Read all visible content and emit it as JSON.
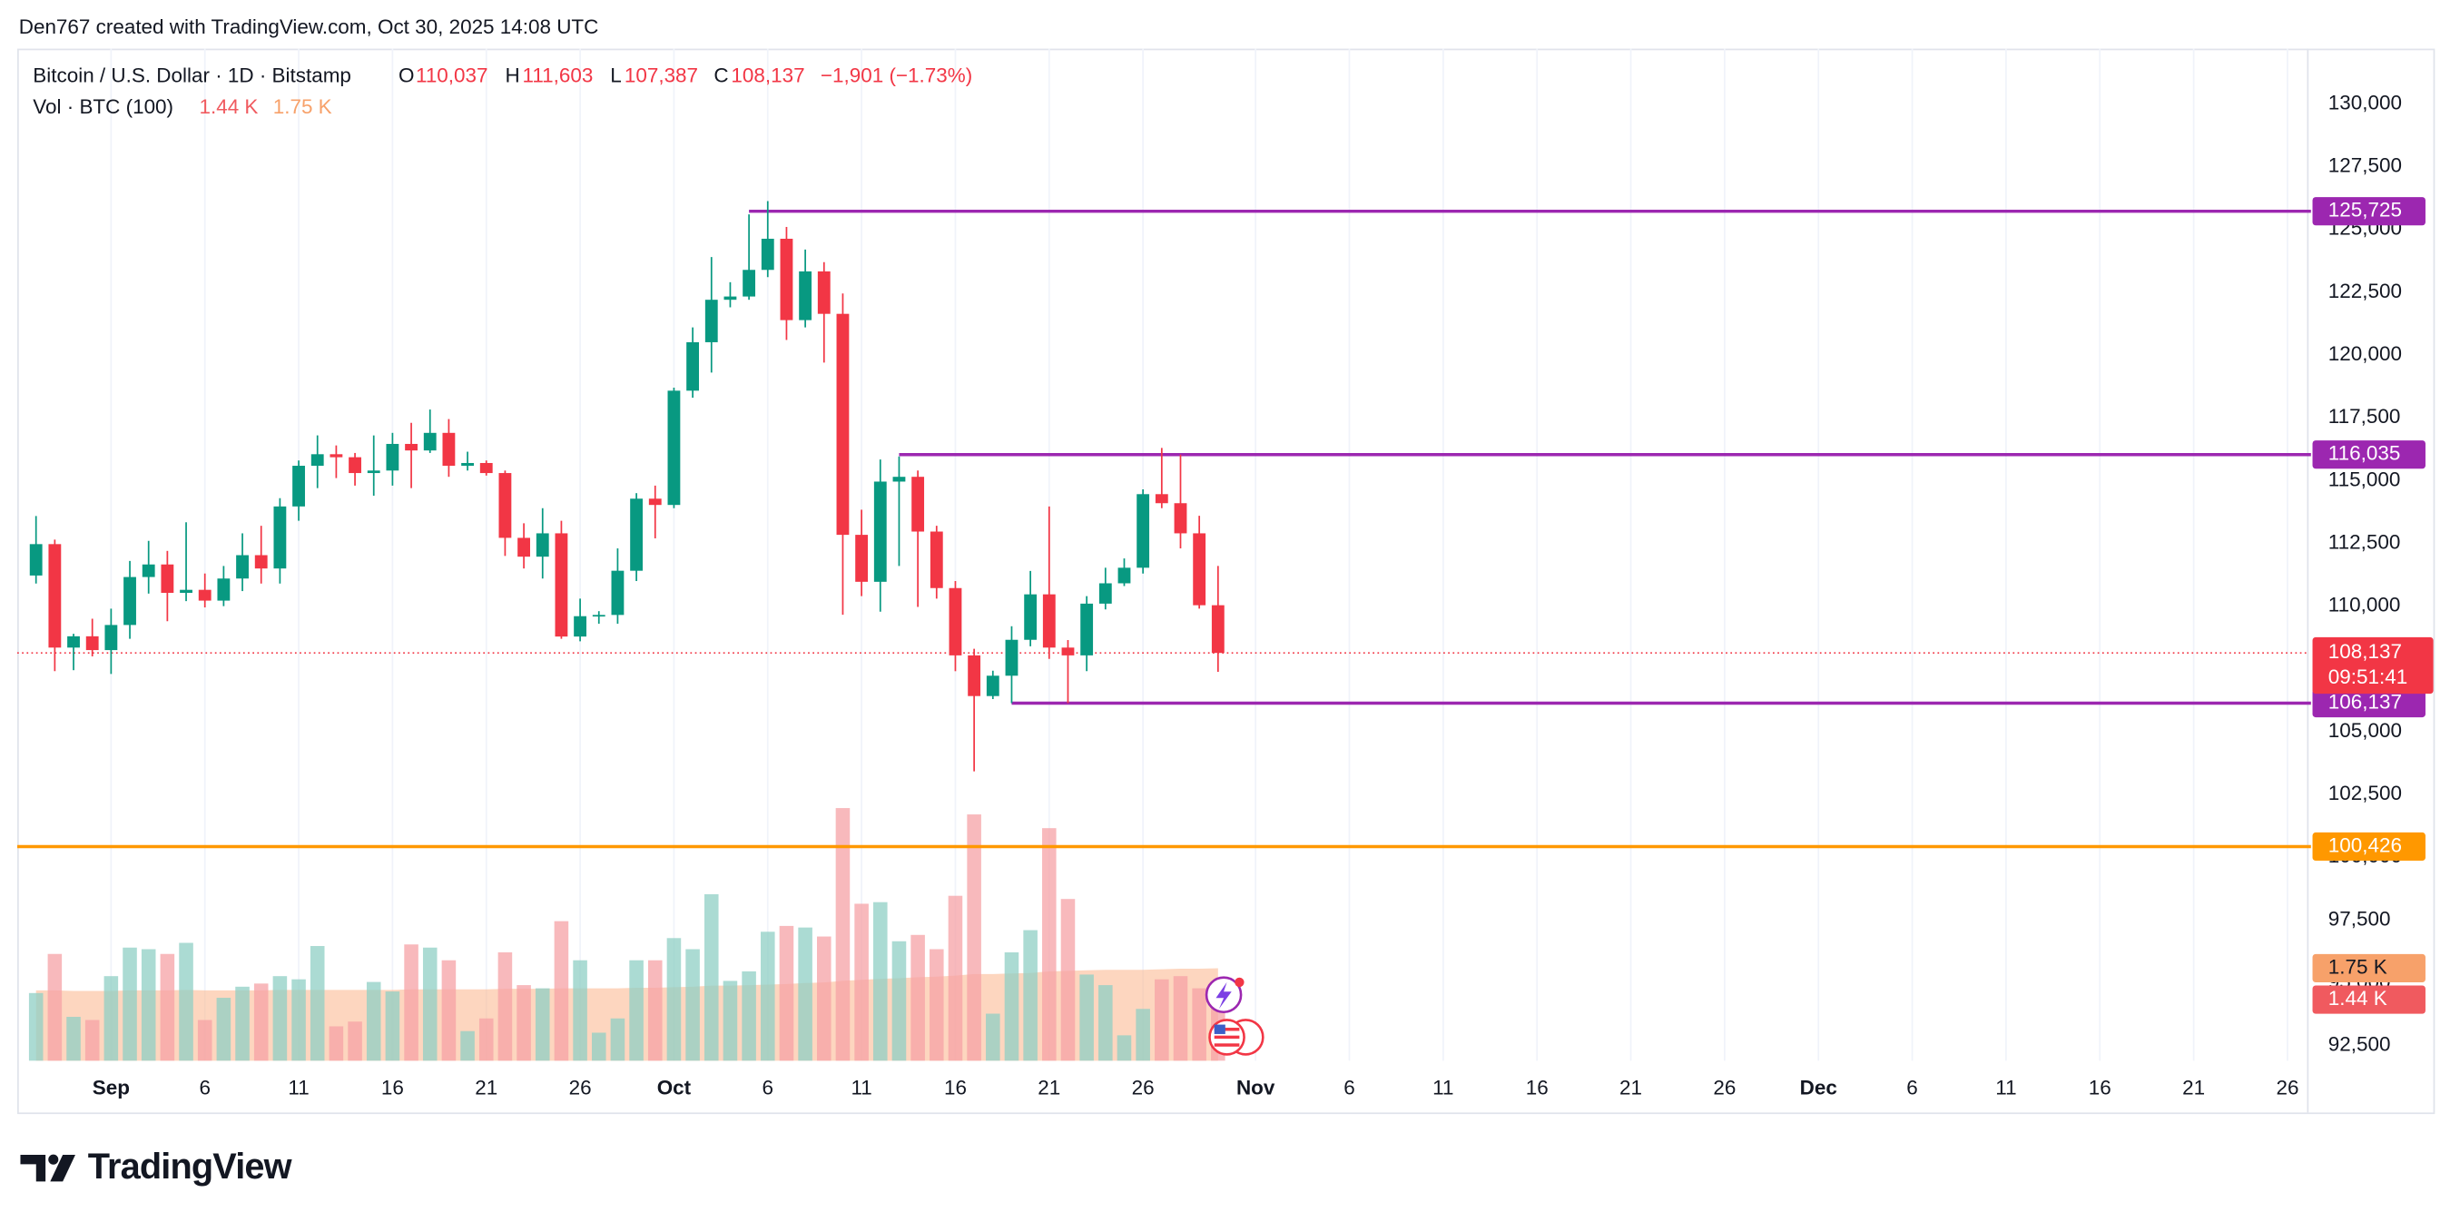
{
  "header": {
    "credit": "Den767 created with TradingView.com, Oct 30, 2025 14:08 UTC",
    "symbol": "Bitcoin / U.S. Dollar · 1D · Bitstamp",
    "ohlc": [
      {
        "key": "O",
        "value": "110,037"
      },
      {
        "key": "H",
        "value": "111,603"
      },
      {
        "key": "L",
        "value": "107,387"
      },
      {
        "key": "C",
        "value": "108,137"
      }
    ],
    "change": "−1,901 (−1.73%)",
    "volume_legend": "Vol · BTC (100)"
  },
  "chart_data": {
    "type": "candlestick",
    "x": [
      "2025-08-28",
      "2025-08-29",
      "2025-08-30",
      "2025-08-31",
      "2025-09-01",
      "2025-09-02",
      "2025-09-03",
      "2025-09-04",
      "2025-09-05",
      "2025-09-06",
      "2025-09-07",
      "2025-09-08",
      "2025-09-09",
      "2025-09-10",
      "2025-09-11",
      "2025-09-12",
      "2025-09-13",
      "2025-09-14",
      "2025-09-15",
      "2025-09-16",
      "2025-09-17",
      "2025-09-18",
      "2025-09-19",
      "2025-09-20",
      "2025-09-21",
      "2025-09-22",
      "2025-09-23",
      "2025-09-24",
      "2025-09-25",
      "2025-09-26",
      "2025-09-27",
      "2025-09-28",
      "2025-09-29",
      "2025-09-30",
      "2025-10-01",
      "2025-10-02",
      "2025-10-03",
      "2025-10-04",
      "2025-10-05",
      "2025-10-06",
      "2025-10-07",
      "2025-10-08",
      "2025-10-09",
      "2025-10-10",
      "2025-10-11",
      "2025-10-12",
      "2025-10-13",
      "2025-10-14",
      "2025-10-15",
      "2025-10-16",
      "2025-10-17",
      "2025-10-18",
      "2025-10-19",
      "2025-10-20",
      "2025-10-21",
      "2025-10-22",
      "2025-10-23",
      "2025-10-24",
      "2025-10-25",
      "2025-10-26",
      "2025-10-27",
      "2025-10-28",
      "2025-10-29",
      "2025-10-30"
    ],
    "open": [
      111220,
      112470,
      108350,
      108800,
      108250,
      109250,
      111160,
      111660,
      110530,
      110650,
      110220,
      111100,
      112030,
      111500,
      113970,
      115590,
      116050,
      115930,
      115300,
      115400,
      116460,
      116200,
      116900,
      115590,
      115700,
      115300,
      112720,
      111970,
      112900,
      108790,
      109600,
      109650,
      111410,
      114280,
      114030,
      118580,
      120510,
      122200,
      122330,
      123390,
      124630,
      121390,
      123330,
      121640,
      112840,
      110970,
      114960,
      115150,
      112970,
      110720,
      108040,
      106420,
      107230,
      108660,
      110470,
      108350,
      108040,
      110100,
      110910,
      111530,
      114460,
      114100,
      112900,
      110037
    ],
    "high": [
      113590,
      112650,
      108900,
      109500,
      109900,
      111800,
      112600,
      112200,
      113340,
      111300,
      111600,
      112900,
      113200,
      114300,
      115800,
      116800,
      116400,
      116100,
      116800,
      116900,
      117300,
      117830,
      117450,
      116150,
      115800,
      115400,
      113300,
      113900,
      113400,
      110300,
      109800,
      112300,
      114500,
      114800,
      118700,
      121100,
      123900,
      122900,
      125600,
      126130,
      125100,
      124200,
      123700,
      122450,
      113840,
      115840,
      115960,
      115400,
      113200,
      111000,
      108300,
      107430,
      109200,
      111400,
      113970,
      108650,
      110400,
      111530,
      111900,
      114650,
      116300,
      116035,
      113600,
      111603
    ],
    "low": [
      110900,
      107410,
      107450,
      108000,
      107300,
      108700,
      110500,
      109400,
      110200,
      109950,
      110000,
      110600,
      110900,
      110900,
      113400,
      114700,
      115100,
      114800,
      114400,
      114800,
      114700,
      116100,
      115150,
      115400,
      115200,
      112000,
      111500,
      111100,
      108700,
      108600,
      109300,
      109300,
      111000,
      112700,
      113900,
      118300,
      119300,
      121900,
      122200,
      123100,
      120600,
      121100,
      119700,
      109660,
      110400,
      109780,
      111600,
      109970,
      110300,
      107410,
      103420,
      106300,
      106137,
      108400,
      107900,
      106137,
      107410,
      109870,
      110800,
      111300,
      113900,
      112300,
      109900,
      107387
    ],
    "close": [
      112470,
      108350,
      108800,
      108250,
      109250,
      111160,
      111660,
      110530,
      110650,
      110220,
      111100,
      112030,
      111500,
      113970,
      115590,
      116050,
      115930,
      115300,
      115400,
      116460,
      116200,
      116900,
      115590,
      115700,
      115300,
      112720,
      111970,
      112900,
      108790,
      109600,
      109650,
      111410,
      114280,
      114030,
      118580,
      120510,
      122200,
      122330,
      123390,
      124630,
      121390,
      123330,
      121640,
      112840,
      110970,
      114960,
      115150,
      112970,
      110720,
      108040,
      106420,
      107230,
      108660,
      110470,
      108350,
      108040,
      110100,
      110910,
      111530,
      114460,
      114100,
      112900,
      110037,
      108137
    ],
    "up_color": "#089981",
    "down_color": "#f23645",
    "xlim": [
      "2025-08-27",
      "2025-12-27"
    ],
    "xticks": [
      {
        "value": "2025-09-01",
        "label": "Sep"
      },
      {
        "value": "2025-09-06",
        "label": "6"
      },
      {
        "value": "2025-09-11",
        "label": "11"
      },
      {
        "value": "2025-09-16",
        "label": "16"
      },
      {
        "value": "2025-09-21",
        "label": "21"
      },
      {
        "value": "2025-09-26",
        "label": "26"
      },
      {
        "value": "2025-10-01",
        "label": "Oct"
      },
      {
        "value": "2025-10-06",
        "label": "6"
      },
      {
        "value": "2025-10-11",
        "label": "11"
      },
      {
        "value": "2025-10-16",
        "label": "16"
      },
      {
        "value": "2025-10-21",
        "label": "21"
      },
      {
        "value": "2025-10-26",
        "label": "26"
      },
      {
        "value": "2025-11-01",
        "label": "Nov"
      },
      {
        "value": "2025-11-06",
        "label": "6"
      },
      {
        "value": "2025-11-11",
        "label": "11"
      },
      {
        "value": "2025-11-16",
        "label": "16"
      },
      {
        "value": "2025-11-21",
        "label": "21"
      },
      {
        "value": "2025-11-26",
        "label": "26"
      },
      {
        "value": "2025-12-01",
        "label": "Dec"
      },
      {
        "value": "2025-12-06",
        "label": "6"
      },
      {
        "value": "2025-12-11",
        "label": "11"
      },
      {
        "value": "2025-12-16",
        "label": "16"
      },
      {
        "value": "2025-12-21",
        "label": "21"
      },
      {
        "value": "2025-12-26",
        "label": "26"
      }
    ],
    "ylim": [
      91900,
      132200
    ],
    "yticks": [
      {
        "value": 92500,
        "label": "92,500"
      },
      {
        "value": 95000,
        "label": "95,000"
      },
      {
        "value": 97500,
        "label": "97,500"
      },
      {
        "value": 100000,
        "label": "100,000"
      },
      {
        "value": 102500,
        "label": "102,500"
      },
      {
        "value": 105000,
        "label": "105,000"
      },
      {
        "value": 107500,
        "label": "107,500"
      },
      {
        "value": 110000,
        "label": "110,000"
      },
      {
        "value": 112500,
        "label": "112,500"
      },
      {
        "value": 115000,
        "label": "115,000"
      },
      {
        "value": 117500,
        "label": "117,500"
      },
      {
        "value": 120000,
        "label": "120,000"
      },
      {
        "value": 122500,
        "label": "122,500"
      },
      {
        "value": 125000,
        "label": "125,000"
      },
      {
        "value": 127500,
        "label": "127,500"
      },
      {
        "value": 130000,
        "label": "130,000"
      }
    ],
    "grid": true,
    "volume": {
      "values": [
        1280,
        2020,
        830,
        770,
        1600,
        2140,
        2110,
        2020,
        2230,
        770,
        1190,
        1400,
        1460,
        1600,
        1540,
        2170,
        650,
        740,
        1490,
        1310,
        2200,
        2140,
        1900,
        560,
        800,
        2050,
        1430,
        1370,
        2640,
        1900,
        530,
        800,
        1900,
        1900,
        2320,
        2110,
        3150,
        1510,
        1690,
        2440,
        2550,
        2520,
        2350,
        4780,
        2970,
        3000,
        2260,
        2380,
        2110,
        3120,
        4660,
        890,
        2050,
        2470,
        4400,
        3060,
        1630,
        1430,
        480,
        980,
        1540,
        1600,
        1370,
        1440
      ],
      "ma_values": [
        1330,
        1330,
        1320,
        1320,
        1320,
        1330,
        1330,
        1330,
        1340,
        1330,
        1330,
        1330,
        1330,
        1340,
        1340,
        1340,
        1340,
        1340,
        1340,
        1340,
        1350,
        1350,
        1350,
        1350,
        1350,
        1360,
        1360,
        1360,
        1370,
        1370,
        1370,
        1370,
        1380,
        1380,
        1390,
        1400,
        1420,
        1420,
        1430,
        1440,
        1450,
        1470,
        1480,
        1510,
        1530,
        1550,
        1560,
        1580,
        1590,
        1610,
        1640,
        1640,
        1650,
        1660,
        1690,
        1700,
        1710,
        1720,
        1720,
        1720,
        1730,
        1740,
        1740,
        1750
      ],
      "up_color": "#8fcfc4",
      "down_color": "#f6a1a6",
      "ma_color": "#fbb48a",
      "last_volume": {
        "value": 1440,
        "label": "1.44 K"
      },
      "last_volume_color": "#f05a5f",
      "last_ma": {
        "value": 1750,
        "label": "1.75 K"
      },
      "last_ma_color": "#f7a16a"
    },
    "levels": [
      {
        "value": 125725,
        "label": "125,725",
        "start": "2025-10-05",
        "color": "#9c27b0"
      },
      {
        "value": 116035,
        "label": "116,035",
        "start": "2025-10-13",
        "color": "#9c27b0"
      },
      {
        "value": 106137,
        "label": "106,137",
        "start": "2025-10-19",
        "color": "#9c27b0"
      },
      {
        "value": 100426,
        "label": "100,426",
        "start": null,
        "color": "#ff9800"
      }
    ],
    "last_price": {
      "value": 108137,
      "label": "108,137"
    },
    "countdown": "09:51:41",
    "last_price_color": "#f23645"
  },
  "footer": {
    "brand": "TradingView"
  }
}
